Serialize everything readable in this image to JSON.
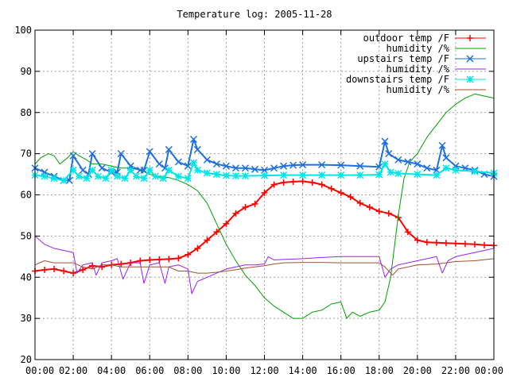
{
  "chart_data": {
    "type": "line",
    "title": "Temperature log: 2005-11-28",
    "xlabel": "",
    "ylabel": "",
    "xlim": [
      0,
      24
    ],
    "ylim": [
      20,
      100
    ],
    "x_ticks": [
      "00:00",
      "02:00",
      "04:00",
      "06:00",
      "08:00",
      "10:00",
      "12:00",
      "14:00",
      "16:00",
      "18:00",
      "20:00",
      "22:00",
      "00:00"
    ],
    "y_ticks": [
      "20",
      "30",
      "40",
      "50",
      "60",
      "70",
      "80",
      "90",
      "100"
    ],
    "grid": true,
    "legend_position": "top-right",
    "series": [
      {
        "name": "outdoor temp /F",
        "color": "#ff0000",
        "marker": "plus",
        "x": [
          0,
          0.5,
          1,
          1.5,
          2,
          2.5,
          3,
          3.5,
          4,
          4.5,
          5,
          5.5,
          6,
          6.5,
          7,
          7.5,
          8,
          8.5,
          9,
          9.5,
          10,
          10.5,
          11,
          11.5,
          12,
          12.5,
          13,
          13.5,
          14,
          14.5,
          15,
          15.5,
          16,
          16.5,
          17,
          17.5,
          18,
          18.5,
          19,
          19.5,
          20,
          20.5,
          21,
          21.5,
          22,
          22.5,
          23,
          23.5,
          24
        ],
        "values": [
          41.5,
          41.8,
          42,
          41.5,
          41,
          41.8,
          42.8,
          42.5,
          43,
          43.2,
          43.5,
          44,
          44.2,
          44.3,
          44.4,
          44.6,
          45.5,
          47,
          49,
          51,
          53,
          55.5,
          57,
          57.8,
          60.5,
          62.5,
          63,
          63.2,
          63.3,
          63,
          62.5,
          61.5,
          60.5,
          59.5,
          58,
          57,
          56,
          55.5,
          54.5,
          51,
          49,
          48.5,
          48.4,
          48.3,
          48.2,
          48.1,
          48,
          47.8,
          47.7
        ]
      },
      {
        "name": "humidity /%",
        "color": "#00a000",
        "marker": "none",
        "x": [
          0,
          0.3,
          0.7,
          1,
          1.3,
          1.7,
          2,
          2.3,
          2.7,
          3,
          3.5,
          4,
          4.5,
          5,
          5.5,
          6,
          6.5,
          7,
          7.5,
          8,
          8.5,
          9,
          9.5,
          10,
          10.5,
          11,
          11.5,
          12,
          12.5,
          13,
          13.5,
          14,
          14.5,
          15,
          15.5,
          16,
          16.3,
          16.6,
          17,
          17.5,
          18,
          18.3,
          18.6,
          19,
          19.3,
          19.6,
          20,
          20.5,
          21,
          21.5,
          22,
          22.5,
          23,
          23.5,
          24
        ],
        "values": [
          67.5,
          69,
          70,
          69.5,
          67.5,
          69,
          70.5,
          69.5,
          68.5,
          67.5,
          67.5,
          67,
          66.5,
          66.5,
          66,
          65,
          64.5,
          64.2,
          63.5,
          62.5,
          61,
          58,
          53,
          48,
          44,
          40.5,
          38,
          35,
          33,
          31.5,
          30,
          30,
          31.5,
          32,
          33.5,
          34,
          30,
          31.5,
          30.5,
          31.5,
          32,
          34,
          40,
          55,
          64,
          68,
          70,
          74,
          77,
          80,
          82,
          83.5,
          84.5,
          84,
          83.5
        ]
      },
      {
        "name": "upstairs temp /F",
        "color": "#1e70e0",
        "marker": "cross",
        "x": [
          0,
          0.5,
          1,
          1.5,
          1.8,
          2,
          2.5,
          2.8,
          3,
          3.5,
          4,
          4.3,
          4.5,
          5,
          5.5,
          5.7,
          6,
          6.5,
          6.8,
          7,
          7.5,
          8,
          8.3,
          8.5,
          9,
          9.5,
          10,
          10.5,
          11,
          11.5,
          12,
          12.5,
          13,
          13.5,
          14,
          15,
          16,
          17,
          18,
          18.3,
          18.5,
          19,
          19.5,
          20,
          20.5,
          21,
          21.3,
          21.5,
          22,
          22.5,
          23,
          23.5,
          24
        ],
        "values": [
          66.5,
          65.5,
          64.5,
          63.5,
          63.5,
          69.5,
          66,
          65,
          70,
          66.5,
          65.5,
          65.5,
          70,
          67,
          66,
          66,
          70.5,
          67.5,
          66.5,
          71,
          68,
          67,
          73.5,
          71,
          68.5,
          67.5,
          67,
          66.5,
          66.5,
          66.2,
          66,
          66.5,
          67,
          67.2,
          67.3,
          67.3,
          67.2,
          67,
          66.8,
          73,
          70,
          68.5,
          68,
          67.5,
          66.5,
          66,
          72,
          69,
          67,
          66.5,
          66,
          65,
          64.5
        ]
      },
      {
        "name": "humidity /%",
        "color": "#a020f0",
        "marker": "none",
        "x": [
          0,
          0.5,
          1,
          1.5,
          2,
          2.2,
          2.5,
          3,
          3.2,
          3.5,
          4,
          4.3,
          4.6,
          5,
          5.5,
          5.7,
          6,
          6.5,
          6.8,
          7,
          7.5,
          8,
          8.2,
          8.5,
          9,
          9.5,
          10,
          10.5,
          11,
          11.5,
          12,
          12.2,
          12.5,
          13,
          14,
          15,
          16,
          17,
          18,
          18.3,
          18.6,
          19,
          20,
          21,
          21.3,
          21.6,
          22,
          23,
          24
        ],
        "values": [
          50,
          48,
          47,
          46.5,
          46,
          41,
          43,
          43.5,
          40.5,
          43.5,
          44,
          44.5,
          39.5,
          43.5,
          43.5,
          38.5,
          43,
          43.5,
          38.5,
          42.5,
          43,
          42,
          36,
          39,
          40,
          41,
          42,
          42.5,
          43,
          43,
          43.2,
          45,
          44.2,
          44.3,
          44.5,
          44.8,
          45,
          45,
          45,
          40,
          42,
          43,
          44,
          45,
          41,
          44,
          45,
          46,
          47
        ]
      },
      {
        "name": "downstairs temp /F",
        "color": "#00e5e5",
        "marker": "star",
        "x": [
          0,
          0.5,
          1,
          1.5,
          2,
          2.3,
          2.7,
          3,
          3.3,
          3.7,
          4,
          4.3,
          4.7,
          5,
          5.3,
          5.7,
          6,
          6.3,
          6.7,
          7,
          7.5,
          8,
          8.3,
          8.5,
          9,
          9.5,
          10,
          10.5,
          11,
          12,
          13,
          14,
          15,
          16,
          17,
          18,
          18.3,
          18.6,
          19,
          20,
          21,
          21.5,
          22,
          23,
          24
        ],
        "values": [
          64.8,
          64.5,
          64,
          63.5,
          66,
          64.5,
          64,
          66,
          64.5,
          64,
          66,
          64.5,
          64,
          66,
          64.5,
          64,
          66,
          64.5,
          64,
          66,
          64.5,
          64,
          67.8,
          66,
          65.3,
          65,
          64.7,
          64.6,
          64.6,
          64.7,
          64.8,
          64.8,
          64.8,
          64.8,
          64.8,
          64.9,
          67.5,
          65.5,
          65.2,
          65,
          64.8,
          66.5,
          66,
          65.7,
          65.3
        ]
      },
      {
        "name": "humidity /%",
        "color": "#a0522d",
        "marker": "none",
        "x": [
          0,
          0.5,
          1,
          1.5,
          2,
          2.5,
          3,
          3.5,
          4,
          4.5,
          5,
          5.5,
          6,
          6.5,
          7,
          7.5,
          8,
          8.5,
          9,
          9.5,
          10,
          10.5,
          11,
          11.5,
          12,
          12.5,
          13,
          14,
          15,
          16,
          17,
          18,
          18.3,
          18.7,
          19,
          20,
          21,
          22,
          23,
          24
        ],
        "values": [
          43,
          44,
          43.5,
          43.5,
          43.5,
          42.5,
          42,
          43,
          43,
          42.5,
          42.5,
          42.5,
          42.5,
          42.5,
          42.5,
          41.5,
          41.5,
          41,
          41,
          41.2,
          41.5,
          41.8,
          42.2,
          42.5,
          42.8,
          43.2,
          43.5,
          43.6,
          43.6,
          43.5,
          43.5,
          43.5,
          42.5,
          40.5,
          42,
          43,
          43.2,
          43.8,
          44,
          44.5
        ]
      }
    ]
  }
}
